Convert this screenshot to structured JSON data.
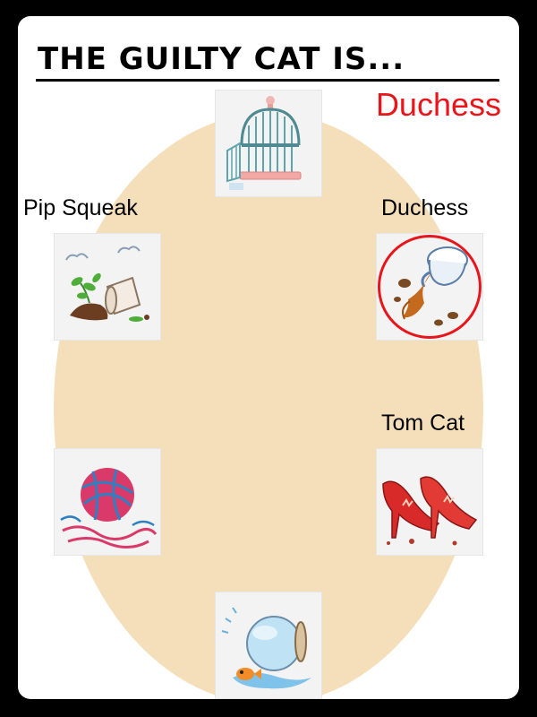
{
  "header": {
    "title": "THE GUILTY CAT IS...",
    "answer": "Duchess"
  },
  "colors": {
    "background": "#ffffff",
    "frame": "#000000",
    "ellipse": "#f5dfbb",
    "answer": "#e8161b",
    "selection_ring": "#e8161b"
  },
  "items": [
    {
      "id": "birdcage",
      "icon": "open-birdcage-icon",
      "label": ""
    },
    {
      "id": "spilled-coffee",
      "icon": "spilled-coffee-cup-icon",
      "label": "Duchess",
      "selected": true
    },
    {
      "id": "torn-shoes",
      "icon": "torn-red-heels-icon",
      "label": "Tom Cat"
    },
    {
      "id": "fishbowl",
      "icon": "tipped-fishbowl-icon",
      "label": ""
    },
    {
      "id": "yarn",
      "icon": "tangled-yarn-icon",
      "label": ""
    },
    {
      "id": "flowerpot",
      "icon": "knocked-over-plant-icon",
      "label": "Pip Squeak"
    }
  ]
}
